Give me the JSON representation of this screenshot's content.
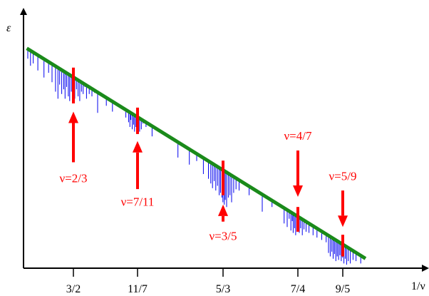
{
  "chart_data": {
    "type": "line",
    "title": "",
    "xlabel": "1/ν",
    "ylabel": "ε",
    "x_ticks": [
      {
        "value": 1.5,
        "label": "3/2"
      },
      {
        "value": 1.5714,
        "label": "11/7"
      },
      {
        "value": 1.6667,
        "label": "5/3"
      },
      {
        "value": 1.75,
        "label": "7/4"
      },
      {
        "value": 1.8,
        "label": "9/5"
      }
    ],
    "series": [
      {
        "type": "line",
        "x": [
          1.4481,
          1.8253
        ],
        "y": [
          0.934,
          0.041
        ]
      }
    ],
    "red_markers": [
      {
        "label": "ν=2/3",
        "x": 1.5,
        "arrow": "up",
        "bar_y": [
          0.852,
          0.7
        ],
        "arrow_y": [
          0.665,
          0.45
        ],
        "label_y": 0.365
      },
      {
        "label": "ν=7/11",
        "x": 1.5714,
        "arrow": "up",
        "bar_y": [
          0.682,
          0.57
        ],
        "arrow_y": [
          0.54,
          0.336
        ],
        "label_y": 0.265
      },
      {
        "label": "ν=3/5",
        "x": 1.6667,
        "arrow": "up",
        "bar_y": [
          0.457,
          0.31
        ],
        "arrow_y": [
          0.27,
          0.198
        ],
        "label_y": 0.12
      },
      {
        "label": "ν=4/7",
        "x": 1.75,
        "arrow": "down",
        "bar_y": [
          0.26,
          0.155
        ],
        "arrow_y": [
          0.5,
          0.303
        ],
        "label_y": 0.545
      },
      {
        "label": "ν=5/9",
        "x": 1.8,
        "arrow": "down",
        "bar_y": [
          0.142,
          0.05
        ],
        "arrow_y": [
          0.33,
          0.175
        ],
        "label_y": 0.375
      }
    ],
    "blue_gaps": {
      "units": "x in 1/ν, top_y / bottom_y in ε",
      "lines": [
        [
          1.4492,
          0.931,
          0.89
        ],
        [
          1.4522,
          0.924,
          0.86
        ],
        [
          1.4552,
          0.917,
          0.87
        ],
        [
          1.4604,
          0.905,
          0.84
        ],
        [
          1.4672,
          0.889,
          0.81
        ],
        [
          1.4724,
          0.876,
          0.83
        ],
        [
          1.4762,
          0.867,
          0.79
        ],
        [
          1.4801,
          0.858,
          0.75
        ],
        [
          1.4828,
          0.852,
          0.72
        ],
        [
          1.4847,
          0.847,
          0.78
        ],
        [
          1.487,
          0.842,
          0.74
        ],
        [
          1.4892,
          0.836,
          0.76
        ],
        [
          1.4907,
          0.833,
          0.72
        ],
        [
          1.4925,
          0.829,
          0.77
        ],
        [
          1.4944,
          0.824,
          0.73
        ],
        [
          1.4959,
          0.821,
          0.71
        ],
        [
          1.4977,
          0.816,
          0.75
        ],
        [
          1.4996,
          0.812,
          0.74
        ],
        [
          1.5015,
          0.807,
          0.72
        ],
        [
          1.5034,
          0.803,
          0.76
        ],
        [
          1.5052,
          0.798,
          0.73
        ],
        [
          1.5071,
          0.794,
          0.71
        ],
        [
          1.509,
          0.789,
          0.75
        ],
        [
          1.5109,
          0.785,
          0.74
        ],
        [
          1.5127,
          0.781,
          0.77
        ],
        [
          1.5146,
          0.776,
          0.72
        ],
        [
          1.5176,
          0.769,
          0.74
        ],
        [
          1.5206,
          0.762,
          0.73
        ],
        [
          1.5236,
          0.755,
          0.745
        ],
        [
          1.527,
          0.747,
          0.66
        ],
        [
          1.5367,
          0.724,
          0.69
        ],
        [
          1.5435,
          0.708,
          0.665
        ],
        [
          1.5584,
          0.673,
          0.64
        ],
        [
          1.5614,
          0.666,
          0.62
        ],
        [
          1.5629,
          0.662,
          0.6
        ],
        [
          1.564,
          0.659,
          0.63
        ],
        [
          1.5655,
          0.656,
          0.59
        ],
        [
          1.567,
          0.652,
          0.61
        ],
        [
          1.5681,
          0.65,
          0.58
        ],
        [
          1.5696,
          0.646,
          0.6
        ],
        [
          1.5711,
          0.643,
          0.57
        ],
        [
          1.5726,
          0.639,
          0.6
        ],
        [
          1.5737,
          0.637,
          0.58
        ],
        [
          1.5756,
          0.632,
          0.59
        ],
        [
          1.5775,
          0.628,
          0.615
        ],
        [
          1.5809,
          0.62,
          0.6
        ],
        [
          1.5876,
          0.604,
          0.56
        ],
        [
          1.6164,
          0.536,
          0.47
        ],
        [
          1.6291,
          0.506,
          0.44
        ],
        [
          1.6373,
          0.487,
          0.455
        ],
        [
          1.6448,
          0.469,
          0.4
        ],
        [
          1.6504,
          0.456,
          0.38
        ],
        [
          1.653,
          0.45,
          0.36
        ],
        [
          1.6549,
          0.445,
          0.34
        ],
        [
          1.6568,
          0.441,
          0.37
        ],
        [
          1.6586,
          0.436,
          0.33
        ],
        [
          1.6605,
          0.432,
          0.35
        ],
        [
          1.6624,
          0.428,
          0.31
        ],
        [
          1.6639,
          0.424,
          0.32
        ],
        [
          1.6654,
          0.42,
          0.3
        ],
        [
          1.6665,
          0.418,
          0.28
        ],
        [
          1.668,
          0.414,
          0.27
        ],
        [
          1.6691,
          0.412,
          0.29
        ],
        [
          1.6706,
          0.408,
          0.26
        ],
        [
          1.6725,
          0.404,
          0.3
        ],
        [
          1.6744,
          0.399,
          0.31
        ],
        [
          1.6762,
          0.395,
          0.28
        ],
        [
          1.6785,
          0.39,
          0.32
        ],
        [
          1.6811,
          0.383,
          0.335
        ],
        [
          1.6845,
          0.375,
          0.33
        ],
        [
          1.6957,
          0.349,
          0.31
        ],
        [
          1.7103,
          0.315,
          0.24
        ],
        [
          1.7212,
          0.289,
          0.26
        ],
        [
          1.7347,
          0.257,
          0.19
        ],
        [
          1.7381,
          0.249,
          0.175
        ],
        [
          1.7403,
          0.244,
          0.21
        ],
        [
          1.7422,
          0.239,
          0.16
        ],
        [
          1.7437,
          0.236,
          0.2
        ],
        [
          1.7448,
          0.233,
          0.15
        ],
        [
          1.7463,
          0.23,
          0.17
        ],
        [
          1.7475,
          0.227,
          0.14
        ],
        [
          1.749,
          0.224,
          0.18
        ],
        [
          1.7501,
          0.221,
          0.16
        ],
        [
          1.7516,
          0.217,
          0.15
        ],
        [
          1.7531,
          0.214,
          0.17
        ],
        [
          1.7549,
          0.21,
          0.14
        ],
        [
          1.7568,
          0.205,
          0.165
        ],
        [
          1.7591,
          0.2,
          0.155
        ],
        [
          1.7624,
          0.192,
          0.15
        ],
        [
          1.7669,
          0.181,
          0.14
        ],
        [
          1.7713,
          0.171,
          0.13
        ],
        [
          1.7766,
          0.158,
          0.12
        ],
        [
          1.7815,
          0.147,
          0.11
        ],
        [
          1.7841,
          0.141,
          0.065
        ],
        [
          1.786,
          0.136,
          0.05
        ],
        [
          1.7878,
          0.132,
          0.07
        ],
        [
          1.7893,
          0.128,
          0.04
        ],
        [
          1.7908,
          0.125,
          0.06
        ],
        [
          1.7923,
          0.121,
          0.03
        ],
        [
          1.7938,
          0.118,
          0.05
        ],
        [
          1.7953,
          0.114,
          0.035
        ],
        [
          1.7968,
          0.111,
          0.055
        ],
        [
          1.7983,
          0.107,
          0.03
        ],
        [
          1.7998,
          0.104,
          0.045
        ],
        [
          1.8013,
          0.1,
          0.02
        ],
        [
          1.8028,
          0.097,
          0.04
        ],
        [
          1.8043,
          0.093,
          0.015
        ],
        [
          1.8061,
          0.089,
          0.03
        ],
        [
          1.8084,
          0.084,
          0.02
        ],
        [
          1.8114,
          0.076,
          0.035
        ],
        [
          1.8148,
          0.068,
          0.03
        ],
        [
          1.82,
          0.056,
          0.02
        ]
      ]
    },
    "colors": {
      "line": "#1a8a1a",
      "gaps": "#0000ee",
      "markers": "#ff0000",
      "axes": "#000000",
      "text": "#000000"
    }
  }
}
